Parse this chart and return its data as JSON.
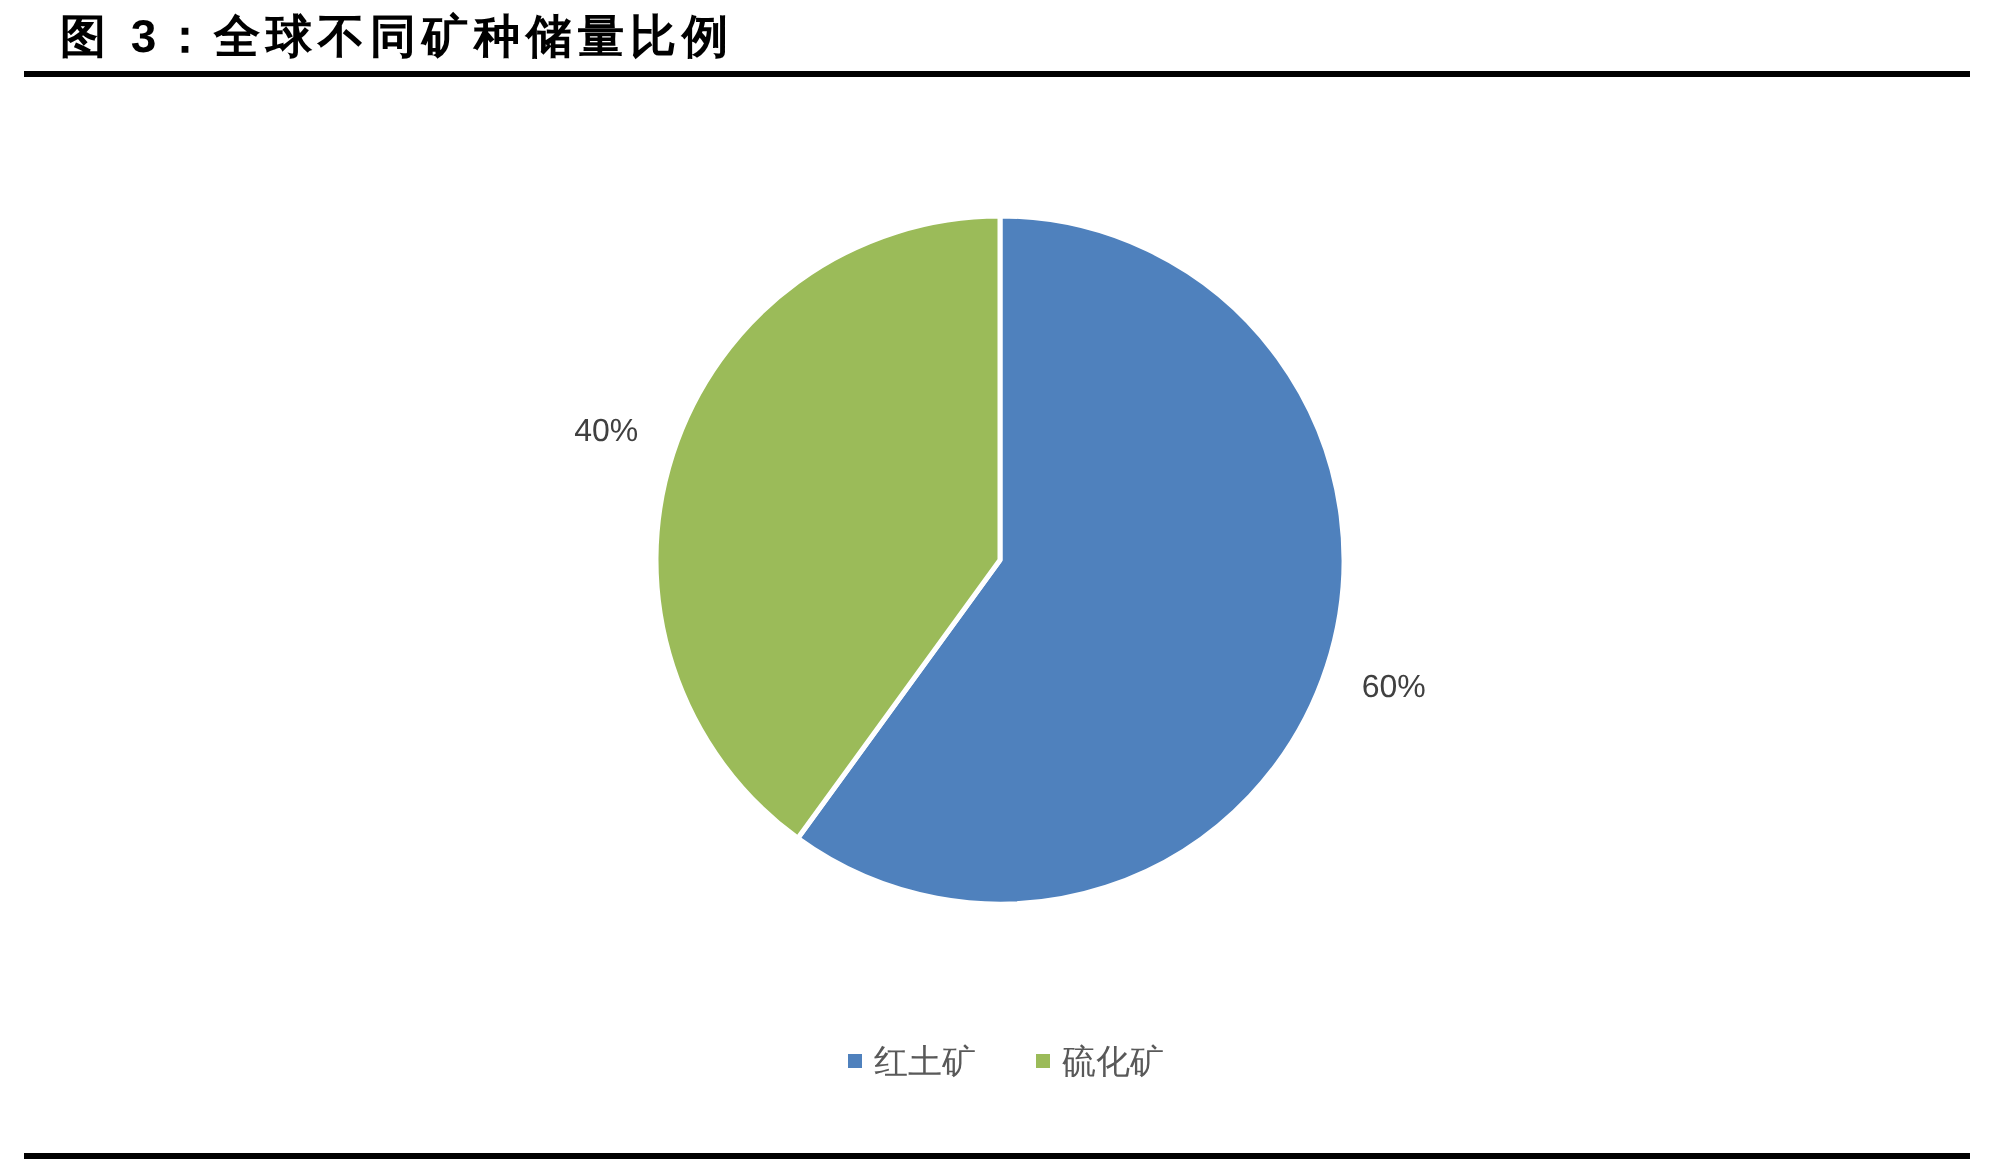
{
  "chart_data": {
    "type": "pie",
    "title": "图 3：全球不同矿种储量比例",
    "categories": [
      "红土矿",
      "硫化矿"
    ],
    "values": [
      60,
      40
    ],
    "colors": [
      "#4f81bd",
      "#9bbb59"
    ],
    "value_labels": [
      "60%",
      "40%"
    ],
    "legend": "bottom"
  }
}
